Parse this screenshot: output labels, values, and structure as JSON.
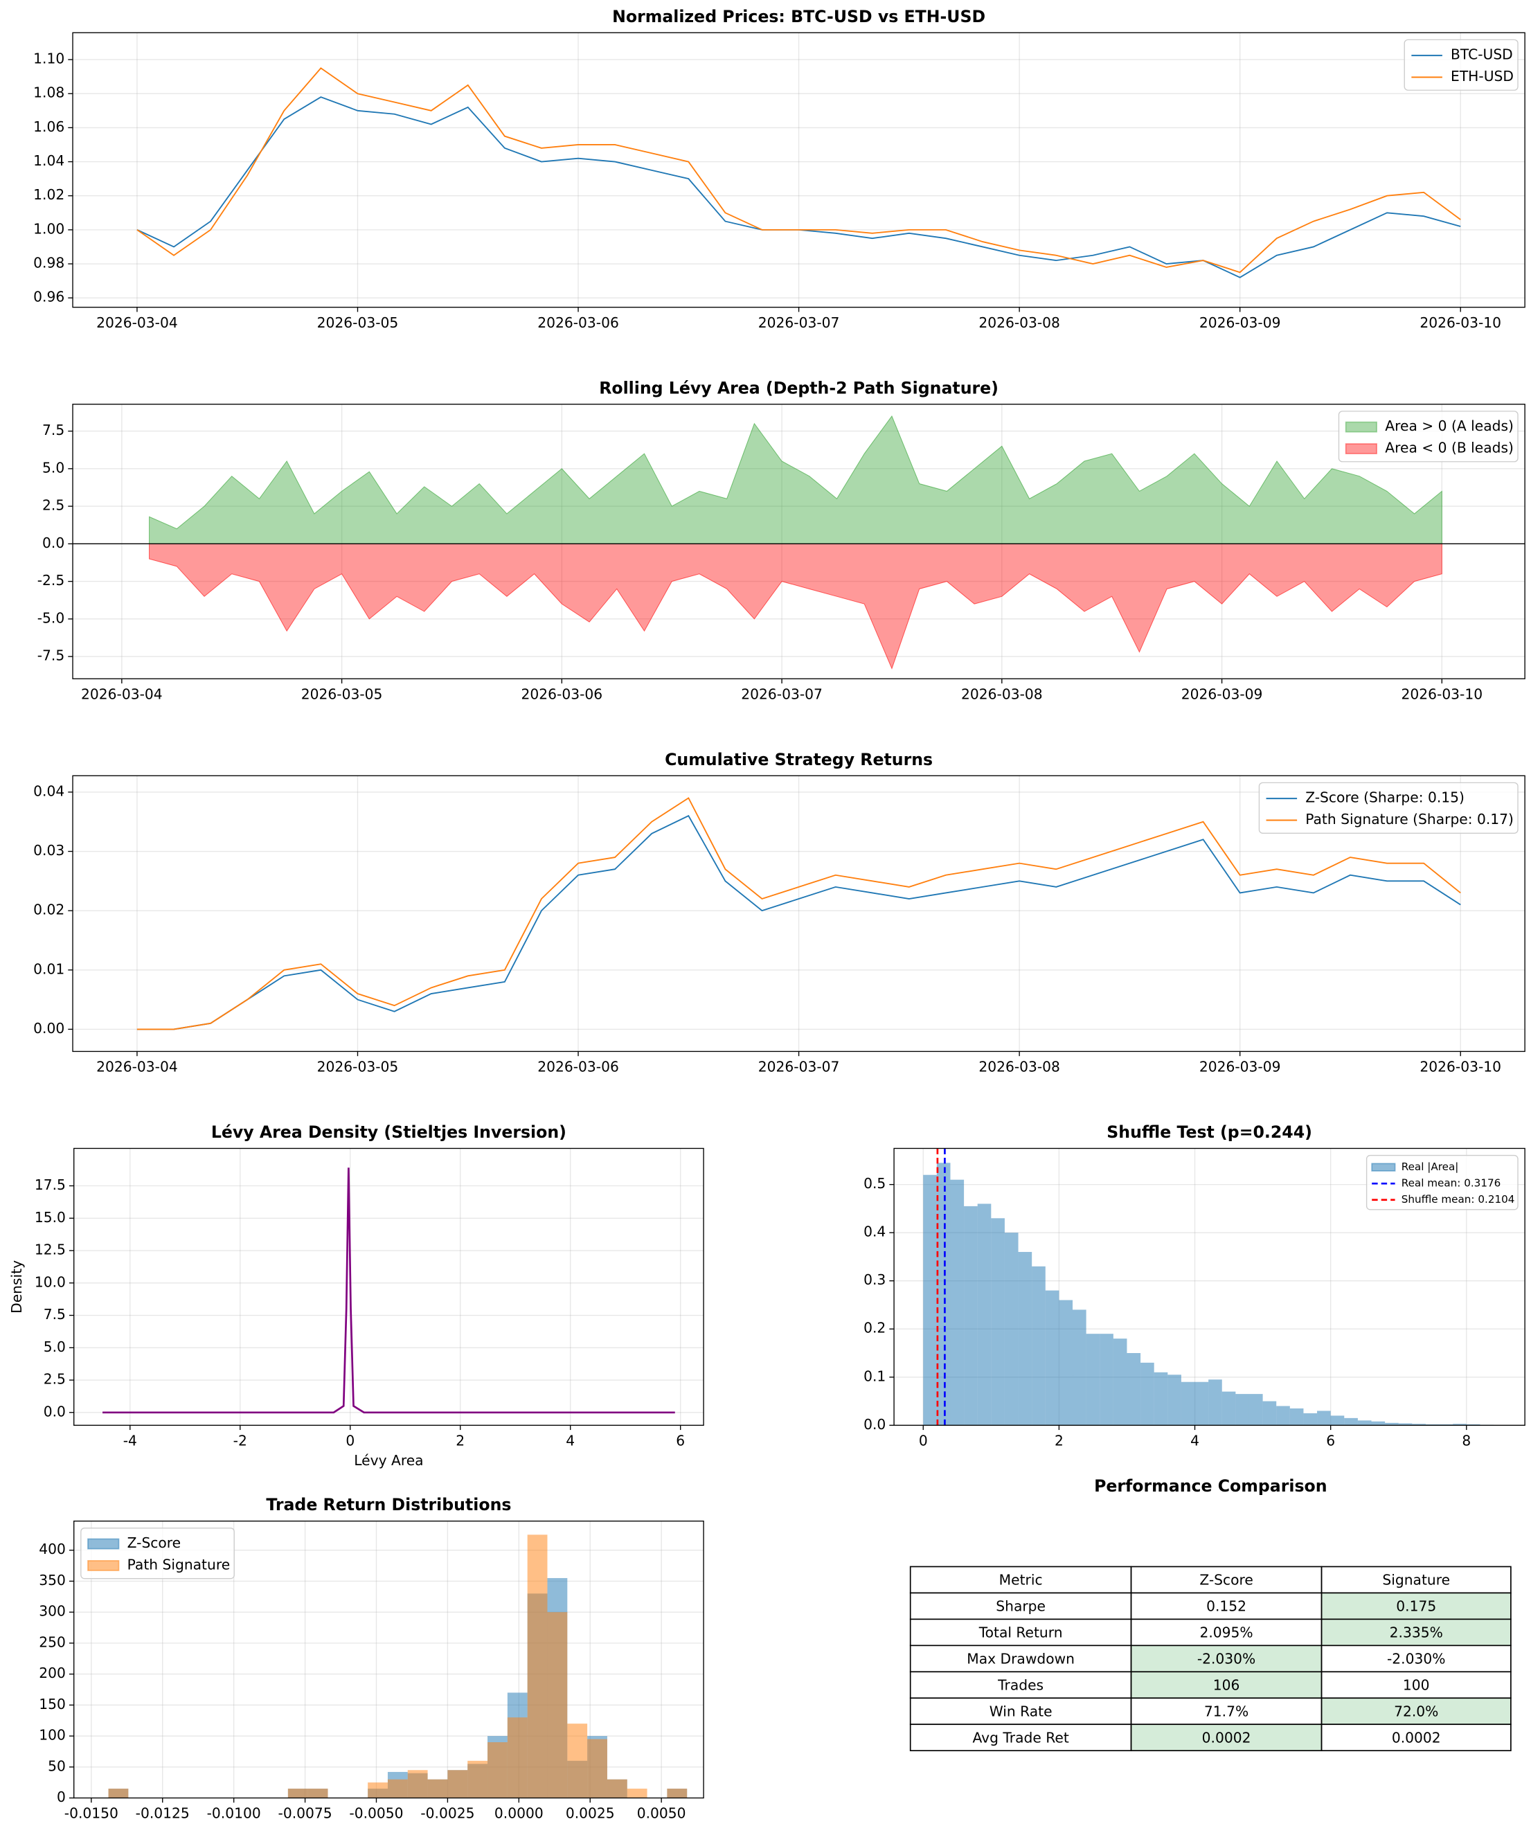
{
  "chart_data": [
    {
      "type": "line",
      "title": "Normalized Prices: BTC-USD vs ETH-USD",
      "x": [
        "2026-03-04T00:00",
        "2026-03-04T04:00",
        "2026-03-04T08:00",
        "2026-03-04T12:00",
        "2026-03-04T16:00",
        "2026-03-04T20:00",
        "2026-03-05T00:00",
        "2026-03-05T04:00",
        "2026-03-05T08:00",
        "2026-03-05T12:00",
        "2026-03-05T16:00",
        "2026-03-05T20:00",
        "2026-03-06T00:00",
        "2026-03-06T04:00",
        "2026-03-06T08:00",
        "2026-03-06T12:00",
        "2026-03-06T16:00",
        "2026-03-06T20:00",
        "2026-03-07T00:00",
        "2026-03-07T04:00",
        "2026-03-07T08:00",
        "2026-03-07T12:00",
        "2026-03-07T16:00",
        "2026-03-07T20:00",
        "2026-03-08T00:00",
        "2026-03-08T04:00",
        "2026-03-08T08:00",
        "2026-03-08T12:00",
        "2026-03-08T16:00",
        "2026-03-08T20:00",
        "2026-03-09T00:00",
        "2026-03-09T04:00",
        "2026-03-09T08:00",
        "2026-03-09T12:00",
        "2026-03-09T16:00",
        "2026-03-09T20:00",
        "2026-03-10T00:00"
      ],
      "series": [
        {
          "name": "BTC-USD",
          "color": "#1f77b4",
          "values": [
            1.0,
            0.99,
            1.005,
            1.035,
            1.065,
            1.078,
            1.07,
            1.068,
            1.062,
            1.072,
            1.048,
            1.04,
            1.042,
            1.04,
            1.035,
            1.03,
            1.005,
            1.0,
            1.0,
            0.998,
            0.995,
            0.998,
            0.995,
            0.99,
            0.985,
            0.982,
            0.985,
            0.99,
            0.98,
            0.982,
            0.972,
            0.985,
            0.99,
            1.0,
            1.01,
            1.008,
            1.002
          ]
        },
        {
          "name": "ETH-USD",
          "color": "#ff7f0e",
          "values": [
            1.0,
            0.985,
            1.0,
            1.032,
            1.07,
            1.095,
            1.08,
            1.075,
            1.07,
            1.085,
            1.055,
            1.048,
            1.05,
            1.05,
            1.045,
            1.04,
            1.01,
            1.0,
            1.0,
            1.0,
            0.998,
            1.0,
            1.0,
            0.993,
            0.988,
            0.985,
            0.98,
            0.985,
            0.978,
            0.982,
            0.975,
            0.995,
            1.005,
            1.012,
            1.02,
            1.022,
            1.006
          ]
        }
      ],
      "xlim": [
        "2026-03-03T17:00",
        "2026-03-10T07:00"
      ],
      "xticks": [
        "2026-03-04",
        "2026-03-05",
        "2026-03-06",
        "2026-03-07",
        "2026-03-08",
        "2026-03-09",
        "2026-03-10"
      ],
      "ylim": [
        0.9545,
        1.1158
      ],
      "yticks": [
        0.96,
        0.98,
        {
          "value": 1.0,
          "label": "1.00"
        },
        1.02,
        1.04,
        1.06,
        1.08,
        {
          "value": 1.1,
          "label": "1.10"
        }
      ],
      "grid": true,
      "legend": "upper right"
    },
    {
      "type": "area",
      "title": "Rolling Lévy Area (Depth-2 Path Signature)",
      "x": [
        "2026-03-04T03:00",
        "2026-03-04T06:00",
        "2026-03-04T09:00",
        "2026-03-04T12:00",
        "2026-03-04T15:00",
        "2026-03-04T18:00",
        "2026-03-04T21:00",
        "2026-03-05T00:00",
        "2026-03-05T03:00",
        "2026-03-05T06:00",
        "2026-03-05T09:00",
        "2026-03-05T12:00",
        "2026-03-05T15:00",
        "2026-03-05T18:00",
        "2026-03-05T21:00",
        "2026-03-06T00:00",
        "2026-03-06T03:00",
        "2026-03-06T06:00",
        "2026-03-06T09:00",
        "2026-03-06T12:00",
        "2026-03-06T15:00",
        "2026-03-06T18:00",
        "2026-03-06T21:00",
        "2026-03-07T00:00",
        "2026-03-07T03:00",
        "2026-03-07T06:00",
        "2026-03-07T09:00",
        "2026-03-07T12:00",
        "2026-03-07T15:00",
        "2026-03-07T18:00",
        "2026-03-07T21:00",
        "2026-03-08T00:00",
        "2026-03-08T03:00",
        "2026-03-08T06:00",
        "2026-03-08T09:00",
        "2026-03-08T12:00",
        "2026-03-08T15:00",
        "2026-03-08T18:00",
        "2026-03-08T21:00",
        "2026-03-09T00:00",
        "2026-03-09T03:00",
        "2026-03-09T06:00",
        "2026-03-09T09:00",
        "2026-03-09T12:00",
        "2026-03-09T15:00",
        "2026-03-09T18:00",
        "2026-03-09T21:00",
        "2026-03-10T00:00"
      ],
      "series": [
        {
          "name": "Area > 0 (A leads)",
          "color": "#2ca02c",
          "values": [
            1.8,
            1.0,
            2.5,
            4.5,
            3.0,
            5.5,
            2.0,
            3.5,
            4.8,
            2.0,
            3.8,
            2.5,
            4.0,
            2.0,
            3.5,
            5.0,
            3.0,
            4.5,
            6.0,
            2.5,
            3.5,
            3.0,
            8.0,
            5.5,
            4.5,
            3.0,
            6.0,
            8.5,
            4.0,
            3.5,
            5.0,
            6.5,
            3.0,
            4.0,
            5.5,
            6.0,
            3.5,
            4.5,
            6.0,
            4.0,
            2.5,
            5.5,
            3.0,
            5.0,
            4.5,
            3.5,
            2.0,
            3.5
          ]
        },
        {
          "name": "Area < 0 (B leads)",
          "color": "#ff0000",
          "values": [
            -1.0,
            -1.5,
            -3.5,
            -2.0,
            -2.5,
            -5.8,
            -3.0,
            -2.0,
            -5.0,
            -3.5,
            -4.5,
            -2.5,
            -2.0,
            -3.5,
            -2.0,
            -4.0,
            -5.2,
            -3.0,
            -5.8,
            -2.5,
            -2.0,
            -3.0,
            -5.0,
            -2.5,
            -3.0,
            -3.5,
            -4.0,
            -8.3,
            -3.0,
            -2.5,
            -4.0,
            -3.5,
            -2.0,
            -3.0,
            -4.5,
            -3.5,
            -7.2,
            -3.0,
            -2.5,
            -4.0,
            -2.0,
            -3.5,
            -2.5,
            -4.5,
            -3.0,
            -4.2,
            -2.5,
            -2.0
          ]
        }
      ],
      "alpha": 0.4,
      "xlim": [
        "2026-03-03T18:39",
        "2026-03-10T09:03"
      ],
      "xticks": [
        "2026-03-04",
        "2026-03-05",
        "2026-03-06",
        "2026-03-07",
        "2026-03-08",
        "2026-03-09",
        "2026-03-10"
      ],
      "ylim": [
        -8.98,
        9.29
      ],
      "yticks": [
        -7.5,
        {
          "value": -5.0,
          "label": "-5.0"
        },
        -2.5,
        {
          "value": 0,
          "label": "0.0"
        },
        2.5,
        {
          "value": 5.0,
          "label": "5.0"
        },
        7.5
      ],
      "grid": true,
      "legend": "upper right"
    },
    {
      "type": "line",
      "title": "Cumulative Strategy Returns",
      "x": [
        "2026-03-04T00:00",
        "2026-03-04T04:00",
        "2026-03-04T08:00",
        "2026-03-04T12:00",
        "2026-03-04T16:00",
        "2026-03-04T20:00",
        "2026-03-05T00:00",
        "2026-03-05T04:00",
        "2026-03-05T08:00",
        "2026-03-05T12:00",
        "2026-03-05T16:00",
        "2026-03-05T20:00",
        "2026-03-06T00:00",
        "2026-03-06T04:00",
        "2026-03-06T08:00",
        "2026-03-06T12:00",
        "2026-03-06T16:00",
        "2026-03-06T20:00",
        "2026-03-07T00:00",
        "2026-03-07T04:00",
        "2026-03-07T08:00",
        "2026-03-07T12:00",
        "2026-03-07T16:00",
        "2026-03-07T20:00",
        "2026-03-08T00:00",
        "2026-03-08T04:00",
        "2026-03-08T08:00",
        "2026-03-08T12:00",
        "2026-03-08T16:00",
        "2026-03-08T20:00",
        "2026-03-09T00:00",
        "2026-03-09T04:00",
        "2026-03-09T08:00",
        "2026-03-09T12:00",
        "2026-03-09T16:00",
        "2026-03-09T20:00",
        "2026-03-10T00:00"
      ],
      "series": [
        {
          "name": "Z-Score (Sharpe: 0.15)",
          "color": "#1f77b4",
          "values": [
            0.0,
            0.0,
            0.001,
            0.005,
            0.009,
            0.01,
            0.005,
            0.003,
            0.006,
            0.007,
            0.008,
            0.02,
            0.026,
            0.027,
            0.033,
            0.036,
            0.025,
            0.02,
            0.022,
            0.024,
            0.023,
            0.022,
            0.023,
            0.024,
            0.025,
            0.024,
            0.026,
            0.028,
            0.03,
            0.032,
            0.023,
            0.024,
            0.023,
            0.026,
            0.025,
            0.025,
            0.021
          ]
        },
        {
          "name": "Path Signature (Sharpe: 0.17)",
          "color": "#ff7f0e",
          "values": [
            0.0,
            0.0,
            0.001,
            0.005,
            0.01,
            0.011,
            0.006,
            0.004,
            0.007,
            0.009,
            0.01,
            0.022,
            0.028,
            0.029,
            0.035,
            0.039,
            0.027,
            0.022,
            0.024,
            0.026,
            0.025,
            0.024,
            0.026,
            0.027,
            0.028,
            0.027,
            0.029,
            0.031,
            0.033,
            0.035,
            0.026,
            0.027,
            0.026,
            0.029,
            0.028,
            0.028,
            0.023
          ]
        }
      ],
      "xlim": [
        "2026-03-03T17:00",
        "2026-03-10T07:00"
      ],
      "xticks": [
        "2026-03-04",
        "2026-03-05",
        "2026-03-06",
        "2026-03-07",
        "2026-03-08",
        "2026-03-09",
        "2026-03-10"
      ],
      "ylim": [
        -0.00374,
        0.04276
      ],
      "yticks": [
        {
          "value": 0,
          "label": "0.00"
        },
        0.01,
        0.02,
        0.03,
        0.04
      ],
      "grid": true,
      "legend": "upper right"
    },
    {
      "type": "line",
      "title": "Lévy Area Density (Stieltjes Inversion)",
      "xlabel": "Lévy Area",
      "ylabel": "Density",
      "x": [
        -4.5,
        -0.3,
        -0.12,
        -0.07,
        -0.03,
        0.01,
        0.06,
        0.25,
        5.9
      ],
      "series": [
        {
          "color": "purple",
          "values": [
            0,
            0,
            0.5,
            8,
            18.9,
            8,
            0.5,
            0,
            0
          ]
        }
      ],
      "xlim": [
        -5.02,
        6.42
      ],
      "xticks": [
        -4,
        -2,
        0,
        2,
        4,
        6
      ],
      "ylim": [
        -0.99,
        20.39
      ],
      "yticks": [
        {
          "value": 0,
          "label": "0.0"
        },
        2.5,
        {
          "value": 5,
          "label": "5.0"
        },
        7.5,
        {
          "value": 10,
          "label": "10.0"
        },
        12.5,
        {
          "value": 15,
          "label": "15.0"
        },
        17.5
      ],
      "grid": true
    },
    {
      "type": "histogram",
      "title": "Shuffle Test (p=0.244)",
      "bins": [
        0,
        0.2,
        0.4,
        0.6,
        0.8,
        1.0,
        1.2,
        1.4,
        1.6,
        1.8,
        2.0,
        2.2,
        2.4,
        2.6,
        2.8,
        3.0,
        3.2,
        3.4,
        3.6,
        3.8,
        4.0,
        4.2,
        4.4,
        4.6,
        4.8,
        5.0,
        5.2,
        5.4,
        5.6,
        5.8,
        6.0,
        6.2,
        6.4,
        6.6,
        6.8,
        7.0,
        7.2,
        7.4,
        7.6,
        7.8,
        8.0,
        8.2,
        8.4
      ],
      "series": [
        {
          "name": "Real |Area|",
          "color": "#1f77b4",
          "values": [
            0.52,
            0.545,
            0.51,
            0.455,
            0.46,
            0.43,
            0.4,
            0.36,
            0.33,
            0.28,
            0.26,
            0.24,
            0.19,
            0.19,
            0.18,
            0.15,
            0.13,
            0.11,
            0.105,
            0.09,
            0.09,
            0.095,
            0.07,
            0.065,
            0.065,
            0.05,
            0.04,
            0.035,
            0.025,
            0.03,
            0.02,
            0.015,
            0.01,
            0.008,
            0.005,
            0.004,
            0.003,
            0.002,
            0.002,
            0.003,
            0.002,
            0.001
          ]
        }
      ],
      "vlines": [
        {
          "name": "Real mean: 0.3176",
          "value": 0.3176,
          "color": "#0000ff"
        },
        {
          "name": "Shuffle mean: 0.2104",
          "value": 0.2104,
          "color": "#ff0000"
        }
      ],
      "alpha": 0.5,
      "xlim": [
        -0.43,
        8.86
      ],
      "xticks": [
        0,
        2,
        4,
        6,
        8
      ],
      "ylim": [
        0,
        0.575
      ],
      "yticks": [
        {
          "value": 0,
          "label": "0.0"
        },
        0.1,
        0.2,
        0.3,
        0.4,
        0.5
      ],
      "grid": true,
      "legend": "upper right"
    },
    {
      "type": "histogram",
      "title": "Trade Return Distributions",
      "bins": [
        -0.0144,
        -0.0137,
        -0.013,
        -0.0123,
        -0.0116,
        -0.0109,
        -0.0102,
        -0.0095,
        -0.0088,
        -0.0081,
        -0.0074,
        -0.0067,
        -0.006,
        -0.0053,
        -0.0046,
        -0.0039,
        -0.0032,
        -0.0025,
        -0.0018,
        -0.0011,
        -0.0004,
        0.0003,
        0.001,
        0.0017,
        0.0024,
        0.0031,
        0.0038,
        0.0045,
        0.0052,
        0.0059
      ],
      "series": [
        {
          "name": "Z-Score",
          "color": "#1f77b4",
          "values": [
            15,
            0,
            0,
            0,
            0,
            0,
            0,
            0,
            0,
            15,
            15,
            0,
            0,
            15,
            42,
            40,
            30,
            45,
            55,
            100,
            170,
            330,
            355,
            60,
            100,
            30,
            0,
            0,
            15
          ]
        },
        {
          "name": "Path Signature",
          "color": "#ff7f0e",
          "values": [
            15,
            0,
            0,
            0,
            0,
            0,
            0,
            0,
            0,
            15,
            15,
            0,
            0,
            25,
            30,
            45,
            30,
            45,
            60,
            90,
            130,
            425,
            300,
            120,
            95,
            30,
            15,
            0,
            15
          ]
        }
      ],
      "alpha": 0.5,
      "xlim": [
        -0.01561,
        0.00648
      ],
      "xticks": [
        {
          "value": -0.015,
          "label": "-0.0150"
        },
        {
          "value": -0.0125,
          "label": "-0.0125"
        },
        {
          "value": -0.01,
          "label": "-0.0100"
        },
        {
          "value": -0.0075,
          "label": "-0.0075"
        },
        {
          "value": -0.005,
          "label": "-0.0050"
        },
        {
          "value": -0.0025,
          "label": "-0.0025"
        },
        {
          "value": 0,
          "label": "0.0000"
        },
        {
          "value": 0.0025,
          "label": "0.0025"
        },
        {
          "value": 0.005,
          "label": "0.0050"
        }
      ],
      "ylim": [
        0,
        447
      ],
      "yticks": [
        0,
        50,
        100,
        150,
        200,
        250,
        300,
        350,
        400
      ],
      "grid": true,
      "legend": "upper left"
    }
  ],
  "table": {
    "title": "Performance Comparison",
    "columns": [
      "Metric",
      "Z-Score",
      "Signature"
    ],
    "rows": [
      [
        "Sharpe",
        "0.152",
        "0.175"
      ],
      [
        "Total Return",
        "2.095%",
        "2.335%"
      ],
      [
        "Max Drawdown",
        "-2.030%",
        "-2.030%"
      ],
      [
        "Trades",
        "106",
        "100"
      ],
      [
        "Win Rate",
        "71.7%",
        "72.0%"
      ],
      [
        "Avg Trade Ret",
        "0.0002",
        "0.0002"
      ]
    ],
    "highlight_col": [
      2,
      2,
      1,
      1,
      2,
      1
    ],
    "highlight_color": "#d5ecd9"
  }
}
